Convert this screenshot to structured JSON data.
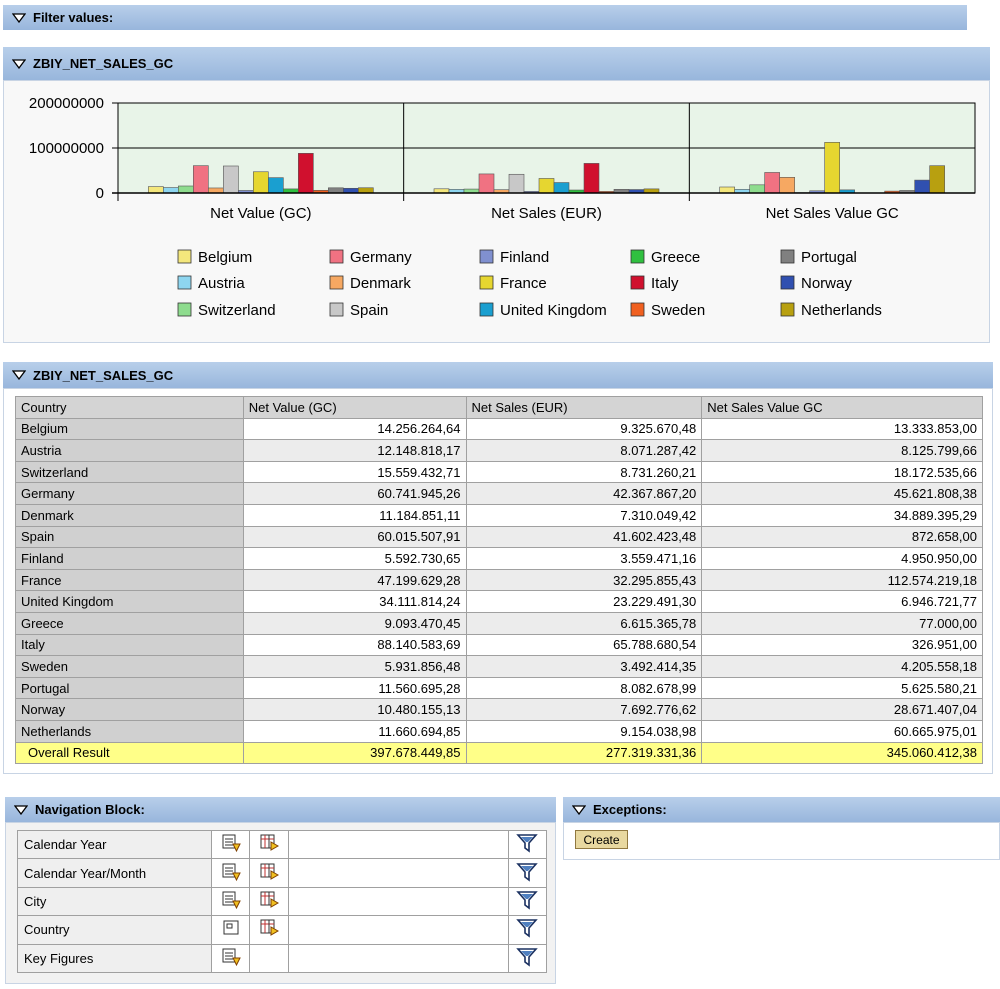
{
  "filter_panel": {
    "title": "Filter values:"
  },
  "chart_panel": {
    "title": "ZBIY_NET_SALES_GC"
  },
  "chart_data": {
    "type": "bar",
    "grid": true,
    "legend": "bottom",
    "categories": [
      "Net Value (GC)",
      "Net Sales (EUR)",
      "Net Sales Value GC"
    ],
    "ylim": [
      0,
      200000000
    ],
    "yticks": [
      0,
      100000000,
      200000000
    ],
    "series": [
      {
        "name": "Belgium",
        "color": "#f4e77c",
        "values": [
          14256264.64,
          9325670.48,
          13333853.0
        ]
      },
      {
        "name": "Austria",
        "color": "#8ed6f0",
        "values": [
          12148818.17,
          8071287.42,
          8125799.66
        ]
      },
      {
        "name": "Switzerland",
        "color": "#8edc8e",
        "values": [
          15559432.71,
          8731260.21,
          18172535.66
        ]
      },
      {
        "name": "Germany",
        "color": "#f07282",
        "values": [
          60741945.26,
          42367867.2,
          45621808.38
        ]
      },
      {
        "name": "Denmark",
        "color": "#f6a862",
        "values": [
          11184851.11,
          7310049.42,
          34889395.29
        ]
      },
      {
        "name": "Spain",
        "color": "#c8c8c8",
        "values": [
          60015507.91,
          41602423.48,
          872658.0
        ]
      },
      {
        "name": "Finland",
        "color": "#8090d0",
        "values": [
          5592730.65,
          3559471.16,
          4950950.0
        ]
      },
      {
        "name": "France",
        "color": "#e6d630",
        "values": [
          47199629.28,
          32295855.43,
          112574219.18
        ]
      },
      {
        "name": "United Kingdom",
        "color": "#1a9fd0",
        "values": [
          34111814.24,
          23229491.3,
          6946721.77
        ]
      },
      {
        "name": "Greece",
        "color": "#30c040",
        "values": [
          9093470.45,
          6615365.78,
          77000.0
        ]
      },
      {
        "name": "Italy",
        "color": "#d0102e",
        "values": [
          88140583.69,
          65788680.54,
          326951.0
        ]
      },
      {
        "name": "Sweden",
        "color": "#f06020",
        "values": [
          5931856.48,
          3492414.35,
          4205558.18
        ]
      },
      {
        "name": "Portugal",
        "color": "#808080",
        "values": [
          11560695.28,
          8082678.99,
          5625580.21
        ]
      },
      {
        "name": "Norway",
        "color": "#3050b0",
        "values": [
          10480155.13,
          7692776.62,
          28671407.04
        ]
      },
      {
        "name": "Netherlands",
        "color": "#b8a010",
        "values": [
          11660694.85,
          9154038.98,
          60665975.01
        ]
      }
    ]
  },
  "table": {
    "title": "ZBIY_NET_SALES_GC",
    "header": [
      "Country",
      "Net Value (GC)",
      "Net Sales (EUR)",
      "Net Sales Value GC"
    ],
    "rows": [
      [
        "Belgium",
        "14.256.264,64",
        "9.325.670,48",
        "13.333.853,00"
      ],
      [
        "Austria",
        "12.148.818,17",
        "8.071.287,42",
        "8.125.799,66"
      ],
      [
        "Switzerland",
        "15.559.432,71",
        "8.731.260,21",
        "18.172.535,66"
      ],
      [
        "Germany",
        "60.741.945,26",
        "42.367.867,20",
        "45.621.808,38"
      ],
      [
        "Denmark",
        "11.184.851,11",
        "7.310.049,42",
        "34.889.395,29"
      ],
      [
        "Spain",
        "60.015.507,91",
        "41.602.423,48",
        "872.658,00"
      ],
      [
        "Finland",
        "5.592.730,65",
        "3.559.471,16",
        "4.950.950,00"
      ],
      [
        "France",
        "47.199.629,28",
        "32.295.855,43",
        "112.574.219,18"
      ],
      [
        "United Kingdom",
        "34.111.814,24",
        "23.229.491,30",
        "6.946.721,77"
      ],
      [
        "Greece",
        "9.093.470,45",
        "6.615.365,78",
        "77.000,00"
      ],
      [
        "Italy",
        "88.140.583,69",
        "65.788.680,54",
        "326.951,00"
      ],
      [
        "Sweden",
        "5.931.856,48",
        "3.492.414,35",
        "4.205.558,18"
      ],
      [
        "Portugal",
        "11.560.695,28",
        "8.082.678,99",
        "5.625.580,21"
      ],
      [
        "Norway",
        "10.480.155,13",
        "7.692.776,62",
        "28.671.407,04"
      ],
      [
        "Netherlands",
        "11.660.694,85",
        "9.154.038,98",
        "60.665.975,01"
      ]
    ],
    "result": [
      "Overall Result",
      "397.678.449,85",
      "277.319.331,36",
      "345.060.412,38"
    ]
  },
  "navigation": {
    "title": "Navigation Block:",
    "rows": [
      "Calendar Year",
      "Calendar Year/Month",
      "City",
      "Country",
      "Key Figures"
    ]
  },
  "exceptions": {
    "title": "Exceptions:",
    "button": "Create"
  }
}
